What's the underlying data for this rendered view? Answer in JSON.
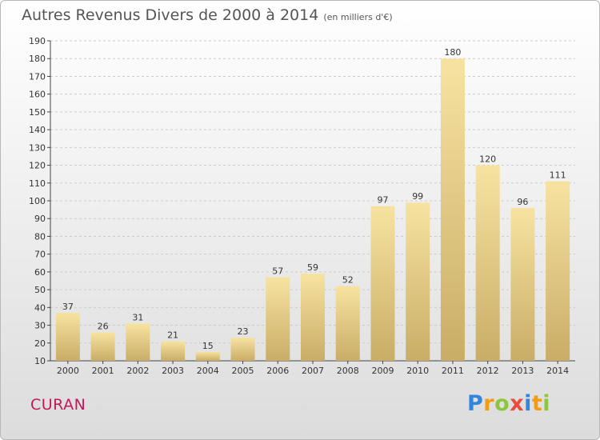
{
  "header": {
    "title": "Autres Revenus Divers de 2000 à 2014",
    "subtitle": "(en milliers d'€)"
  },
  "footer": {
    "city": "CURAN",
    "logo": {
      "text": "Proxiti",
      "letters": [
        {
          "char": "P",
          "color": "#2e86de"
        },
        {
          "char": "r",
          "color": "#f39c12"
        },
        {
          "char": "o",
          "color": "#8cc63f"
        },
        {
          "char": "x",
          "color": "#e74c3c"
        },
        {
          "char": "i",
          "color": "#2e86de"
        },
        {
          "char": "t",
          "color": "#f39c12"
        },
        {
          "char": "i",
          "color": "#8cc63f"
        }
      ]
    }
  },
  "colors": {
    "bar_light": "#f7e3a1",
    "bar_dark": "#c9ad66",
    "grid": "#cccccc",
    "axis": "#444444"
  },
  "chart_data": {
    "type": "bar",
    "categories": [
      "2000",
      "2001",
      "2002",
      "2003",
      "2004",
      "2005",
      "2006",
      "2007",
      "2008",
      "2009",
      "2010",
      "2011",
      "2012",
      "2013",
      "2014"
    ],
    "values": [
      37,
      26,
      31,
      21,
      15,
      23,
      57,
      59,
      52,
      97,
      99,
      180,
      120,
      96,
      111
    ],
    "ylim": [
      10,
      190
    ],
    "yticks": [
      10,
      20,
      30,
      40,
      50,
      60,
      70,
      80,
      90,
      100,
      110,
      120,
      130,
      140,
      150,
      160,
      170,
      180,
      190
    ],
    "grid": true,
    "xlabel": "",
    "ylabel": ""
  }
}
